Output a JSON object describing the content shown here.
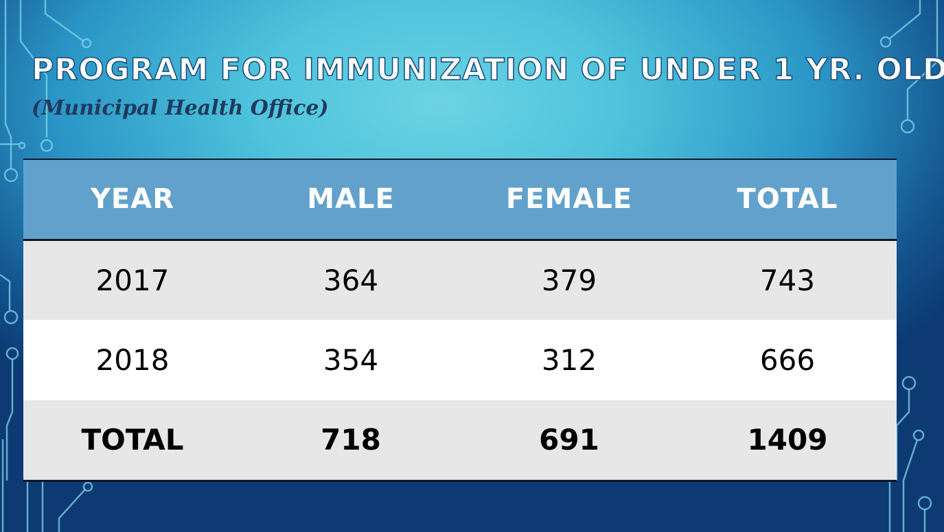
{
  "slide": {
    "title": "PROGRAM FOR IMMUNIZATION OF UNDER 1 YR. OLD",
    "subtitle": "(Municipal Health Office)"
  },
  "table": {
    "headers": [
      "YEAR",
      "MALE",
      "FEMALE",
      "TOTAL"
    ],
    "rows": [
      [
        "2017",
        "364",
        "379",
        "743"
      ],
      [
        "2018",
        "354",
        "312",
        "666"
      ]
    ],
    "total_row": [
      "TOTAL",
      "718",
      "691",
      "1409"
    ]
  },
  "theme": {
    "header_color": "#62a1cc",
    "row_alt_color": "#e7e7e7",
    "background_accent": "#4ec3dc"
  }
}
